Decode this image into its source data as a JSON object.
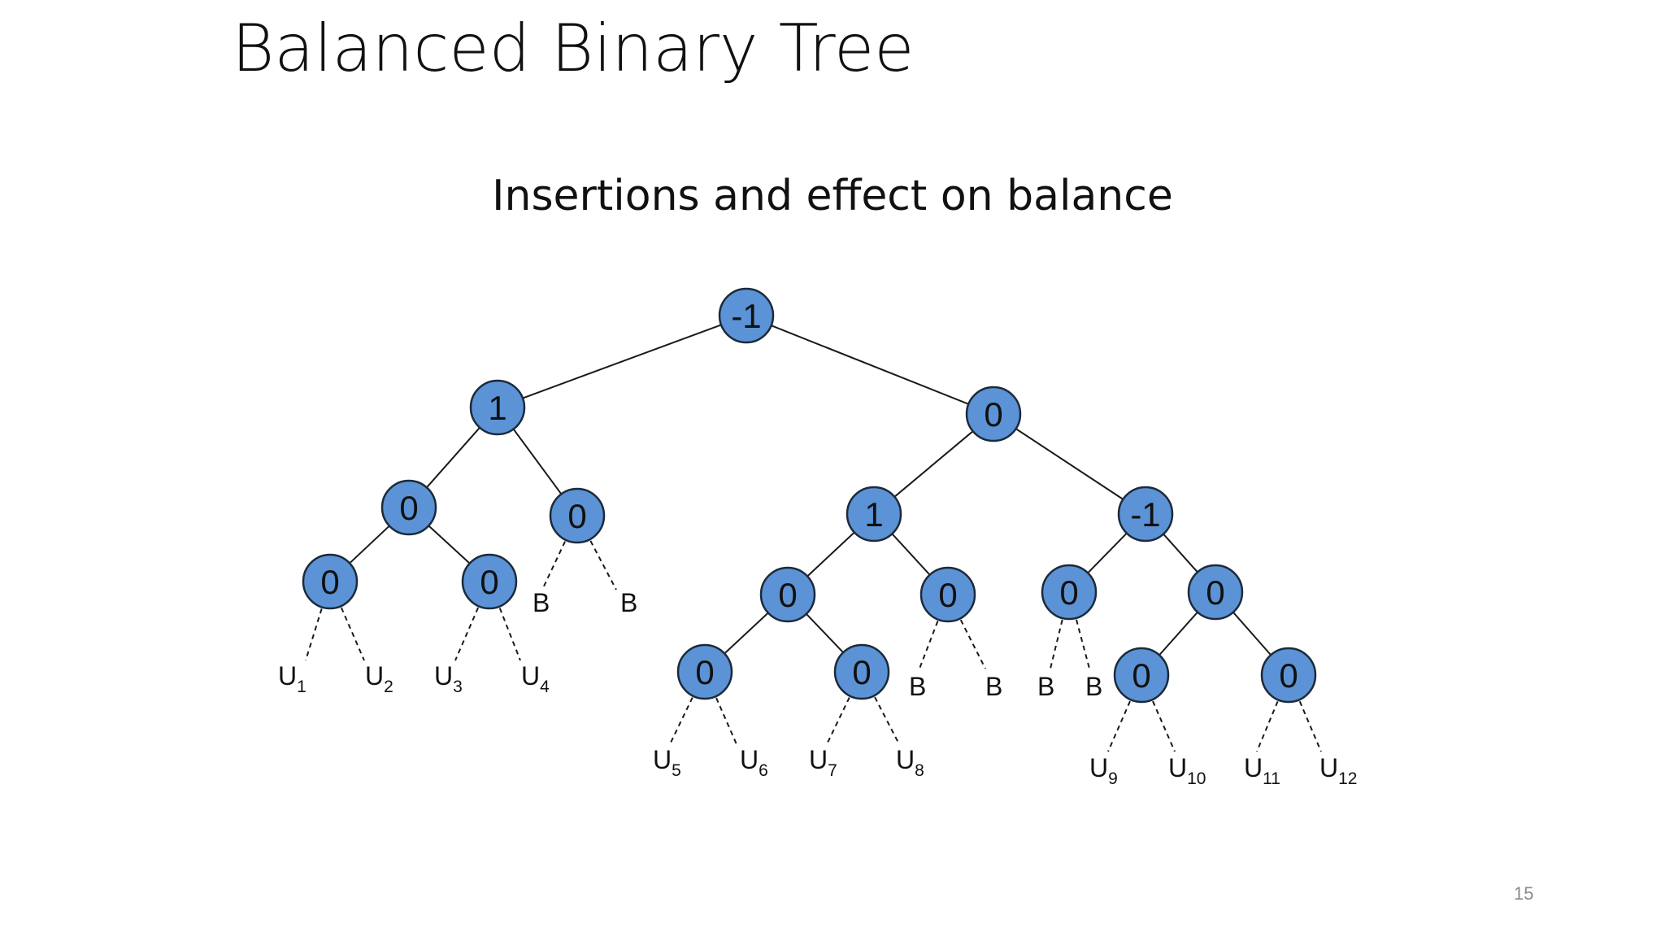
{
  "slide": {
    "title": "Balanced Binary Tree",
    "subtitle": "Insertions and effect on balance",
    "page_number": "15"
  },
  "colors": {
    "node_fill": "#5b93d6",
    "node_stroke": "#1c2a3a",
    "text": "#111111"
  },
  "tree": {
    "nodes": [
      {
        "id": "root",
        "value": "-1"
      },
      {
        "id": "L",
        "value": "1"
      },
      {
        "id": "R",
        "value": "0"
      },
      {
        "id": "LL",
        "value": "0"
      },
      {
        "id": "LR",
        "value": "0"
      },
      {
        "id": "LLL",
        "value": "0"
      },
      {
        "id": "LLR",
        "value": "0"
      },
      {
        "id": "RL",
        "value": "1"
      },
      {
        "id": "RR",
        "value": "-1"
      },
      {
        "id": "RLL",
        "value": "0"
      },
      {
        "id": "RLR",
        "value": "0"
      },
      {
        "id": "RLLL",
        "value": "0"
      },
      {
        "id": "RLLR",
        "value": "0"
      },
      {
        "id": "RRL",
        "value": "0"
      },
      {
        "id": "RRR",
        "value": "0"
      },
      {
        "id": "RRRL",
        "value": "0"
      },
      {
        "id": "RRRR",
        "value": "0"
      }
    ],
    "edges": [
      [
        "root",
        "L"
      ],
      [
        "root",
        "R"
      ],
      [
        "L",
        "LL"
      ],
      [
        "L",
        "LR"
      ],
      [
        "LL",
        "LLL"
      ],
      [
        "LL",
        "LLR"
      ],
      [
        "R",
        "RL"
      ],
      [
        "R",
        "RR"
      ],
      [
        "RL",
        "RLL"
      ],
      [
        "RL",
        "RLR"
      ],
      [
        "RLL",
        "RLLL"
      ],
      [
        "RLL",
        "RLLR"
      ],
      [
        "RR",
        "RRL"
      ],
      [
        "RR",
        "RRR"
      ],
      [
        "RRR",
        "RRRL"
      ],
      [
        "RRR",
        "RRRR"
      ]
    ],
    "leaves": [
      {
        "id": "u1",
        "parent": "LLL",
        "letter": "U",
        "sub": "1"
      },
      {
        "id": "u2",
        "parent": "LLL",
        "letter": "U",
        "sub": "2"
      },
      {
        "id": "u3",
        "parent": "LLR",
        "letter": "U",
        "sub": "3"
      },
      {
        "id": "u4",
        "parent": "LLR",
        "letter": "U",
        "sub": "4"
      },
      {
        "id": "b1",
        "parent": "LR",
        "letter": "B",
        "sub": ""
      },
      {
        "id": "b2",
        "parent": "LR",
        "letter": "B",
        "sub": ""
      },
      {
        "id": "u5",
        "parent": "RLLL",
        "letter": "U",
        "sub": "5"
      },
      {
        "id": "u6",
        "parent": "RLLL",
        "letter": "U",
        "sub": "6"
      },
      {
        "id": "u7",
        "parent": "RLLR",
        "letter": "U",
        "sub": "7"
      },
      {
        "id": "u8",
        "parent": "RLLR",
        "letter": "U",
        "sub": "8"
      },
      {
        "id": "b3",
        "parent": "RLR",
        "letter": "B",
        "sub": ""
      },
      {
        "id": "b4",
        "parent": "RLR",
        "letter": "B",
        "sub": ""
      },
      {
        "id": "b5",
        "parent": "RRL",
        "letter": "B",
        "sub": ""
      },
      {
        "id": "b6",
        "parent": "RRL",
        "letter": "B",
        "sub": ""
      },
      {
        "id": "u9",
        "parent": "RRRL",
        "letter": "U",
        "sub": "9"
      },
      {
        "id": "u10",
        "parent": "RRRL",
        "letter": "U",
        "sub": "10"
      },
      {
        "id": "u11",
        "parent": "RRRR",
        "letter": "U",
        "sub": "11"
      },
      {
        "id": "u12",
        "parent": "RRRR",
        "letter": "U",
        "sub": "12"
      }
    ]
  }
}
